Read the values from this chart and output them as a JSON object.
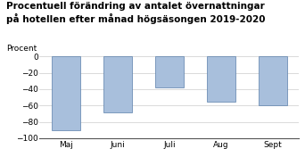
{
  "title_line1": "Procentuell förändring av antalet övernattningar",
  "title_line2": "på hotellen efter månad högsäsongen 2019-2020",
  "ylabel": "Procent",
  "categories": [
    "Maj",
    "Juni",
    "Juli",
    "Aug",
    "Sept"
  ],
  "values": [
    -90,
    -68,
    -38,
    -55,
    -60
  ],
  "bar_color": "#a8bfdc",
  "bar_edgecolor": "#5a7faa",
  "ylim": [
    -100,
    0
  ],
  "yticks": [
    0,
    -20,
    -40,
    -60,
    -80,
    -100
  ],
  "background_color": "#ffffff",
  "title_fontsize": 7.5,
  "ylabel_fontsize": 6.5,
  "tick_fontsize": 6.5,
  "bar_width": 0.55
}
